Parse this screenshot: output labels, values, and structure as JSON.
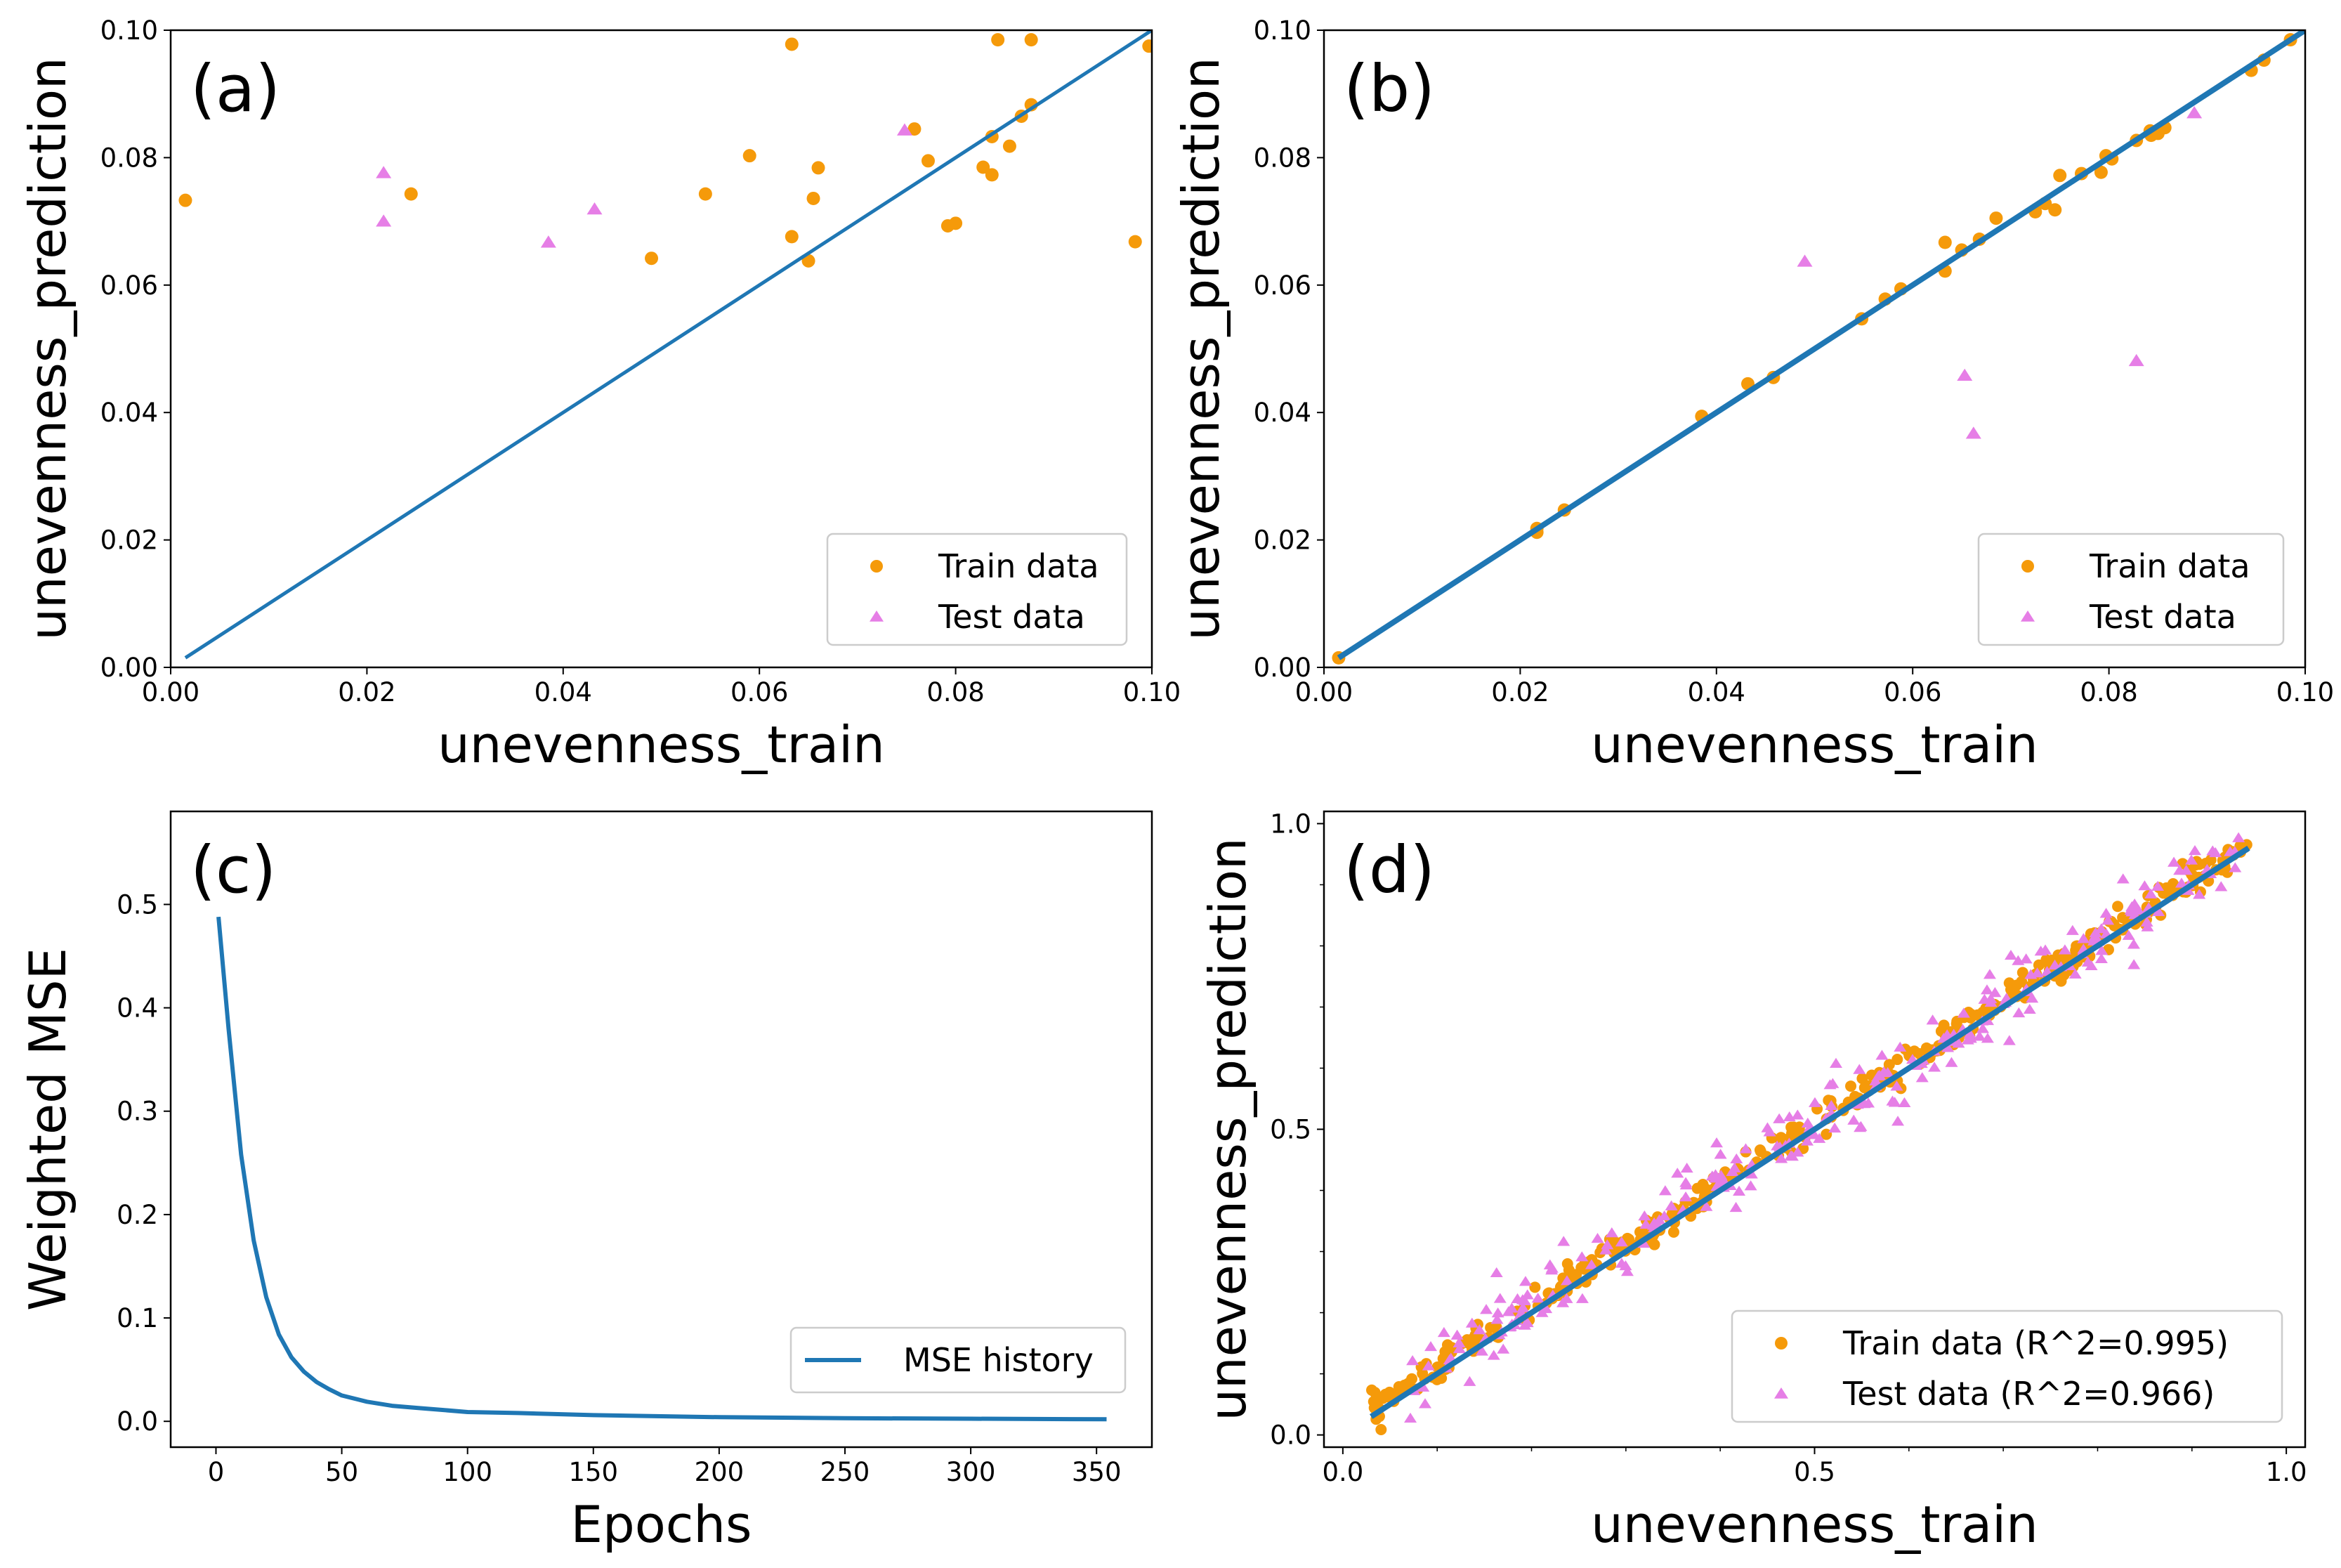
{
  "colors": {
    "train": "#f59a0a",
    "test": "#e67ee6",
    "line": "#1f77b4",
    "axis": "#000000",
    "legend_border": "#cccccc"
  },
  "chart_data": [
    {
      "type": "scatter",
      "panel": "(a)",
      "xlabel": "unevenness_train",
      "ylabel": "unevenness_prediction",
      "xlim": [
        0,
        0.1
      ],
      "ylim": [
        0,
        0.1
      ],
      "xticks": [
        "0.00",
        "0.02",
        "0.04",
        "0.06",
        "0.08",
        "0.10"
      ],
      "yticks": [
        "0.00",
        "0.02",
        "0.04",
        "0.06",
        "0.08",
        "0.10"
      ],
      "legend_position": "lower-right",
      "reference_line": {
        "x": [
          0.0015,
          0.1
        ],
        "y": [
          0.0015,
          0.1
        ]
      },
      "series": [
        {
          "name": "Train data",
          "marker": "circle",
          "points": [
            [
              0.0015,
              0.0733
            ],
            [
              0.0245,
              0.0743
            ],
            [
              0.049,
              0.0642
            ],
            [
              0.0545,
              0.0743
            ],
            [
              0.059,
              0.0803
            ],
            [
              0.0633,
              0.0978
            ],
            [
              0.0633,
              0.0676
            ],
            [
              0.065,
              0.0638
            ],
            [
              0.0655,
              0.0736
            ],
            [
              0.066,
              0.0784
            ],
            [
              0.0758,
              0.0845
            ],
            [
              0.0772,
              0.0795
            ],
            [
              0.0792,
              0.0693
            ],
            [
              0.08,
              0.0697
            ],
            [
              0.0828,
              0.0785
            ],
            [
              0.0837,
              0.0833
            ],
            [
              0.0837,
              0.0773
            ],
            [
              0.0843,
              0.0985
            ],
            [
              0.0855,
              0.0818
            ],
            [
              0.0867,
              0.0865
            ],
            [
              0.0877,
              0.0985
            ],
            [
              0.0877,
              0.0883
            ],
            [
              0.0983,
              0.0668
            ],
            [
              0.0997,
              0.0975
            ]
          ]
        },
        {
          "name": "Test data",
          "marker": "triangle",
          "points": [
            [
              0.0217,
              0.0776
            ],
            [
              0.0217,
              0.07
            ],
            [
              0.0385,
              0.0667
            ],
            [
              0.0432,
              0.0719
            ],
            [
              0.0748,
              0.0843
            ]
          ]
        }
      ]
    },
    {
      "type": "scatter",
      "panel": "(b)",
      "xlabel": "unevenness_train",
      "ylabel": "unevenness_prediction",
      "xlim": [
        0,
        0.1
      ],
      "ylim": [
        0,
        0.1
      ],
      "xticks": [
        "0.00",
        "0.02",
        "0.04",
        "0.06",
        "0.08",
        "0.10"
      ],
      "yticks": [
        "0.00",
        "0.02",
        "0.04",
        "0.06",
        "0.08",
        "0.10"
      ],
      "legend_position": "lower-right",
      "reference_line": {
        "x": [
          0.0015,
          0.1
        ],
        "y": [
          0.0015,
          0.1
        ]
      },
      "series": [
        {
          "name": "Train data",
          "marker": "circle",
          "points": [
            [
              0.0015,
              0.0015
            ],
            [
              0.0217,
              0.0218
            ],
            [
              0.0217,
              0.0212
            ],
            [
              0.0245,
              0.0247
            ],
            [
              0.0385,
              0.0394
            ],
            [
              0.0432,
              0.0445
            ],
            [
              0.0458,
              0.0455
            ],
            [
              0.0548,
              0.0547
            ],
            [
              0.0572,
              0.0578
            ],
            [
              0.0588,
              0.0594
            ],
            [
              0.0633,
              0.0667
            ],
            [
              0.0633,
              0.0622
            ],
            [
              0.065,
              0.0655
            ],
            [
              0.0668,
              0.0672
            ],
            [
              0.0685,
              0.0705
            ],
            [
              0.0725,
              0.0715
            ],
            [
              0.0735,
              0.0728
            ],
            [
              0.0745,
              0.0718
            ],
            [
              0.075,
              0.0772
            ],
            [
              0.0772,
              0.0775
            ],
            [
              0.0792,
              0.0777
            ],
            [
              0.0797,
              0.0803
            ],
            [
              0.0803,
              0.0798
            ],
            [
              0.0828,
              0.0827
            ],
            [
              0.0842,
              0.0842
            ],
            [
              0.0843,
              0.0835
            ],
            [
              0.085,
              0.0838
            ],
            [
              0.0857,
              0.0847
            ],
            [
              0.0945,
              0.0937
            ],
            [
              0.0958,
              0.0953
            ],
            [
              0.0985,
              0.0985
            ]
          ]
        },
        {
          "name": "Test data",
          "marker": "triangle",
          "points": [
            [
              0.049,
              0.0637
            ],
            [
              0.0653,
              0.0458
            ],
            [
              0.0662,
              0.0367
            ],
            [
              0.0828,
              0.0481
            ],
            [
              0.0887,
              0.087
            ]
          ]
        }
      ]
    },
    {
      "type": "line",
      "panel": "(c)",
      "xlabel": "Epochs",
      "ylabel": "Weighted MSE",
      "xlim": [
        -18,
        372
      ],
      "ylim": [
        -0.025,
        0.59
      ],
      "xticks": [
        "0",
        "50",
        "100",
        "150",
        "200",
        "250",
        "300",
        "350"
      ],
      "yticks": [
        "0.0",
        "0.1",
        "0.2",
        "0.3",
        "0.4",
        "0.5"
      ],
      "legend_position": "lower-right",
      "series": [
        {
          "name": "MSE history",
          "x": [
            1,
            5,
            10,
            15,
            20,
            25,
            30,
            35,
            40,
            45,
            50,
            60,
            70,
            80,
            90,
            100,
            120,
            150,
            200,
            250,
            300,
            354
          ],
          "y": [
            0.488,
            0.38,
            0.258,
            0.175,
            0.12,
            0.084,
            0.062,
            0.048,
            0.038,
            0.031,
            0.025,
            0.019,
            0.015,
            0.013,
            0.011,
            0.009,
            0.008,
            0.006,
            0.004,
            0.003,
            0.0025,
            0.002
          ]
        }
      ]
    },
    {
      "type": "scatter",
      "panel": "(d)",
      "xlabel": "unevenness_train",
      "ylabel": "unevenness_prediction",
      "xlim": [
        -0.02,
        1.02
      ],
      "ylim": [
        -0.02,
        1.02
      ],
      "xticks": [
        "0.0",
        "0.5",
        "1.0"
      ],
      "yticks": [
        "0.0",
        "0.5",
        "1.0"
      ],
      "legend_position": "lower-right",
      "reference_line": {
        "x": [
          0.03,
          0.96
        ],
        "y": [
          0.03,
          0.96
        ]
      },
      "series": [
        {
          "name": "Train data (R^2=0.995)",
          "marker": "circle",
          "n_points": 420,
          "x_range": [
            0.03,
            0.96
          ],
          "noise": 0.012
        },
        {
          "name": "Test data (R^2=0.966)",
          "marker": "triangle",
          "n_points": 260,
          "x_range": [
            0.07,
            0.95
          ],
          "noise": 0.03
        }
      ]
    }
  ]
}
